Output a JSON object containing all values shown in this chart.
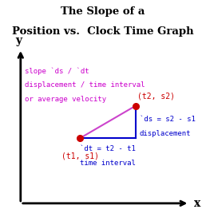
{
  "title_line1": "The Slope of a",
  "title_line2": "Position vs.  Clock Time Graph",
  "title_fontsize": 9.5,
  "title_fontweight": "bold",
  "background_color": "#ffffff",
  "point1": [
    0.35,
    0.42
  ],
  "point2": [
    0.68,
    0.63
  ],
  "point1_label": "(t1, s1)",
  "point2_label": "(t2, s2)",
  "slope_text_line1": "slope `ds / `dt",
  "slope_text_line2": "displacement / time interval",
  "slope_text_line3": "or average velocity",
  "slope_text_color": "#cc00cc",
  "ds_text_line1": "`ds = s2 - s1",
  "ds_text_line2": "displacement",
  "dt_text_line1": "`dt = t2 - t1",
  "dt_text_line2": "time interval",
  "blue_color": "#0000cc",
  "red_color": "#cc0000",
  "point_color": "#cc0000",
  "line_color": "#cc44cc",
  "axis_arrow_color": "#000000",
  "xlabel": "x",
  "ylabel": "y",
  "slope_fontsize": 6.5,
  "label_fontsize": 7,
  "axis_label_fontsize": 10
}
